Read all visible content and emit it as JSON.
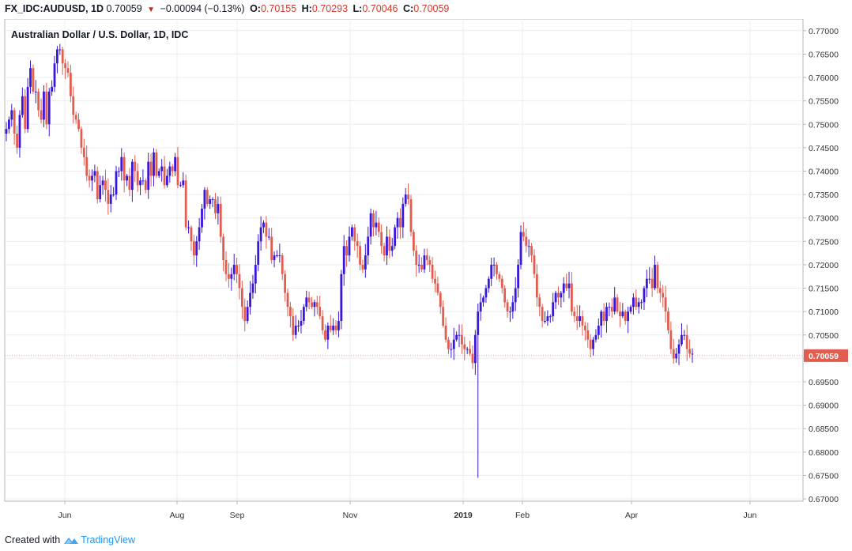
{
  "header": {
    "symbol": "FX_IDC:AUDUSD, 1D",
    "last": "0.70059",
    "change": "−0.00094 (−0.13%)",
    "o_label": "O:",
    "o_value": "0.70155",
    "h_label": "H:",
    "h_value": "0.70293",
    "l_label": "L:",
    "l_value": "0.70046",
    "c_label": "C:",
    "c_value": "0.70059"
  },
  "footer": {
    "created_with": "Created with",
    "brand": "TradingView"
  },
  "colors": {
    "up": "#3a16d9",
    "down": "#e05d50",
    "grid": "#e9ecf1",
    "axis_text": "#333333",
    "price_label_bg": "#e05d50"
  },
  "chart_data": {
    "type": "candlestick",
    "title": "Australian Dollar / U.S. Dollar, 1D, IDC",
    "ylim": [
      0.6695,
      0.7725
    ],
    "yticks": [
      0.67,
      0.675,
      0.68,
      0.685,
      0.69,
      0.695,
      0.7,
      0.705,
      0.71,
      0.715,
      0.72,
      0.725,
      0.73,
      0.735,
      0.74,
      0.745,
      0.75,
      0.755,
      0.76,
      0.765,
      0.77
    ],
    "ytick_labels": [
      "0.67000",
      "0.67500",
      "0.68000",
      "0.68500",
      "0.69000",
      "0.69500",
      "0.70000",
      "0.70500",
      "0.71000",
      "0.71500",
      "0.72000",
      "0.72500",
      "0.73000",
      "0.73500",
      "0.74000",
      "0.74500",
      "0.75000",
      "0.75500",
      "0.76000",
      "0.76500",
      "0.77000"
    ],
    "xticks": [
      "Jun",
      "Aug",
      "Sep",
      "Nov",
      "2019",
      "Feb",
      "Apr",
      "Jun"
    ],
    "current_price_label": "0.70059",
    "current_price": 0.70059,
    "closes": [
      0.749,
      0.751,
      0.753,
      0.748,
      0.745,
      0.752,
      0.756,
      0.749,
      0.758,
      0.762,
      0.757,
      0.757,
      0.753,
      0.751,
      0.757,
      0.75,
      0.757,
      0.758,
      0.763,
      0.766,
      0.766,
      0.763,
      0.762,
      0.761,
      0.756,
      0.752,
      0.751,
      0.749,
      0.745,
      0.743,
      0.739,
      0.738,
      0.739,
      0.74,
      0.734,
      0.737,
      0.738,
      0.736,
      0.733,
      0.735,
      0.735,
      0.74,
      0.74,
      0.743,
      0.738,
      0.739,
      0.736,
      0.742,
      0.74,
      0.737,
      0.738,
      0.738,
      0.736,
      0.742,
      0.739,
      0.744,
      0.739,
      0.74,
      0.741,
      0.737,
      0.739,
      0.741,
      0.74,
      0.743,
      0.737,
      0.737,
      0.738,
      0.728,
      0.728,
      0.725,
      0.722,
      0.725,
      0.728,
      0.732,
      0.736,
      0.733,
      0.734,
      0.734,
      0.731,
      0.733,
      0.726,
      0.721,
      0.718,
      0.717,
      0.718,
      0.72,
      0.718,
      0.715,
      0.711,
      0.708,
      0.711,
      0.714,
      0.716,
      0.72,
      0.725,
      0.728,
      0.729,
      0.726,
      0.726,
      0.721,
      0.722,
      0.722,
      0.722,
      0.718,
      0.714,
      0.711,
      0.709,
      0.705,
      0.707,
      0.707,
      0.708,
      0.711,
      0.713,
      0.712,
      0.711,
      0.712,
      0.711,
      0.709,
      0.706,
      0.704,
      0.707,
      0.706,
      0.707,
      0.706,
      0.708,
      0.718,
      0.724,
      0.722,
      0.726,
      0.728,
      0.725,
      0.724,
      0.72,
      0.719,
      0.722,
      0.726,
      0.731,
      0.728,
      0.729,
      0.727,
      0.724,
      0.722,
      0.726,
      0.723,
      0.724,
      0.728,
      0.73,
      0.728,
      0.733,
      0.735,
      0.734,
      0.727,
      0.723,
      0.72,
      0.72,
      0.719,
      0.722,
      0.721,
      0.72,
      0.717,
      0.716,
      0.714,
      0.711,
      0.707,
      0.704,
      0.702,
      0.702,
      0.704,
      0.705,
      0.705,
      0.703,
      0.702,
      0.702,
      0.701,
      0.699,
      0.705,
      0.71,
      0.712,
      0.713,
      0.715,
      0.717,
      0.72,
      0.72,
      0.718,
      0.717,
      0.715,
      0.712,
      0.71,
      0.71,
      0.712,
      0.715,
      0.72,
      0.727,
      0.726,
      0.724,
      0.724,
      0.722,
      0.718,
      0.713,
      0.711,
      0.708,
      0.708,
      0.709,
      0.709,
      0.712,
      0.714,
      0.713,
      0.714,
      0.716,
      0.715,
      0.716,
      0.71,
      0.709,
      0.708,
      0.709,
      0.707,
      0.706,
      0.704,
      0.702,
      0.704,
      0.705,
      0.707,
      0.71,
      0.708,
      0.711,
      0.711,
      0.71,
      0.713,
      0.71,
      0.709,
      0.71,
      0.708,
      0.71,
      0.711,
      0.713,
      0.711,
      0.712,
      0.712,
      0.715,
      0.717,
      0.717,
      0.715,
      0.72,
      0.715,
      0.714,
      0.713,
      0.71,
      0.706,
      0.702,
      0.7,
      0.701,
      0.703,
      0.705,
      0.705,
      0.702,
      0.701,
      0.701
    ],
    "ohlc_note_first_open": 0.748,
    "special_low_index": 176,
    "special_low": 0.6745
  }
}
